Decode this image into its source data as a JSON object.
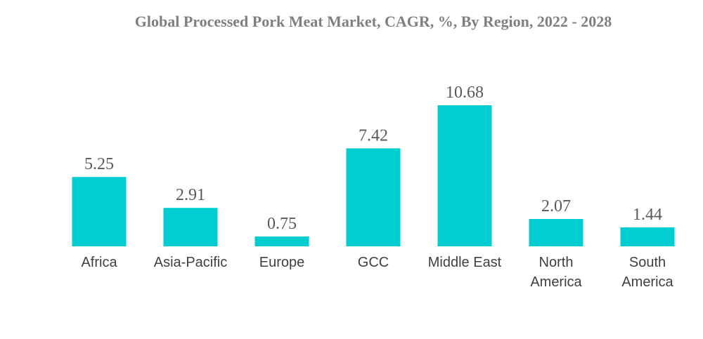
{
  "chart_data": {
    "type": "bar",
    "title": "Global Processed Pork Meat Market, CAGR, %, By Region, 2022 - 2028",
    "categories": [
      [
        "Africa"
      ],
      [
        "Asia-Pacific"
      ],
      [
        "Europe"
      ],
      [
        "GCC"
      ],
      [
        "Middle East"
      ],
      [
        "North",
        "America"
      ],
      [
        "South",
        "America"
      ]
    ],
    "values": [
      5.25,
      2.91,
      0.75,
      7.42,
      10.68,
      2.07,
      1.44
    ],
    "value_labels": [
      "5.25",
      "2.91",
      "0.75",
      "7.42",
      "10.68",
      "2.07",
      "1.44"
    ],
    "bar_color": "#00cdd0",
    "ylim": [
      0,
      10.68
    ],
    "grid": false,
    "legend": "none"
  }
}
